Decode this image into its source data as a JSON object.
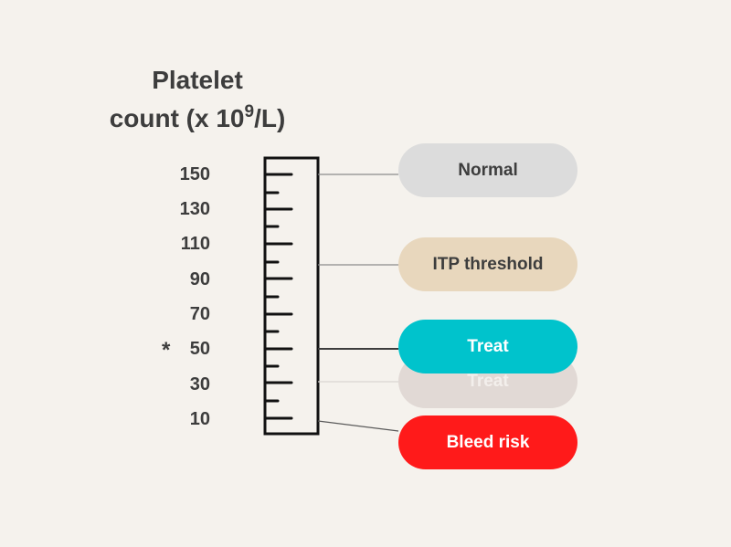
{
  "title": {
    "line1": "Platelet",
    "line2_prefix": "count (x 10",
    "line2_sup": "9",
    "line2_suffix": "/L)"
  },
  "scale": {
    "ticks": [
      "150",
      "130",
      "110",
      "90",
      "70",
      "50",
      "30",
      "10"
    ],
    "marked_tick": "50",
    "marker_symbol": "*"
  },
  "labels": {
    "normal": "Normal",
    "itp_threshold": "ITP threshold",
    "treat": "Treat",
    "treat_ghost": "Treat",
    "bleed_risk": "Bleed risk"
  },
  "colors": {
    "background": "#f5f2ed",
    "normal": "#dcdcdc",
    "itp_threshold": "#e8d7bd",
    "treat": "#00c3cc",
    "treat_ghost": "#e1d9d5",
    "bleed_risk": "#ff1a1a",
    "ink": "#3d3d3d"
  }
}
